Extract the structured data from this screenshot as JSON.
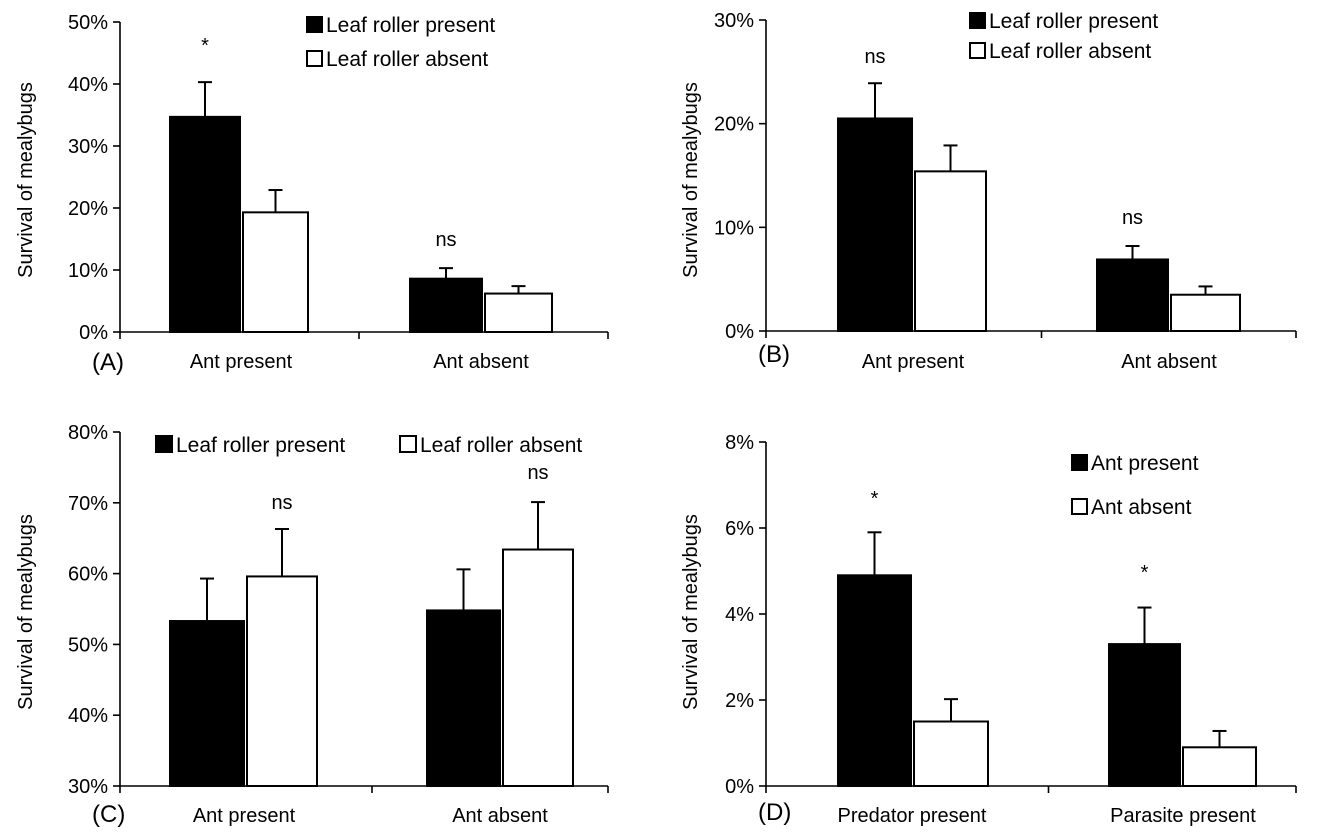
{
  "chart_data": [
    {
      "panel": "(A)",
      "type": "bar",
      "categories": [
        "Ant present",
        "Ant absent"
      ],
      "ylabel": "Survival of mealybugs",
      "ylim": [
        0,
        50
      ],
      "yticks": [
        "0%",
        "10%",
        "20%",
        "30%",
        "40%",
        "50%"
      ],
      "series": [
        {
          "name": "Leaf roller present",
          "color": "#000000",
          "values": [
            34.7,
            8.6
          ],
          "errors": [
            5.6,
            1.7
          ]
        },
        {
          "name": "Leaf roller absent",
          "color": "#ffffff",
          "values": [
            19.3,
            6.2
          ],
          "errors": [
            3.6,
            1.2
          ]
        }
      ],
      "annotations": [
        "*",
        "ns"
      ],
      "legend_position": "top-right"
    },
    {
      "panel": "(B)",
      "type": "bar",
      "categories": [
        "Ant present",
        "Ant absent"
      ],
      "ylabel": "Survival of mealybugs",
      "ylim": [
        0,
        30
      ],
      "yticks": [
        "0%",
        "10%",
        "20%",
        "30%"
      ],
      "series": [
        {
          "name": "Leaf roller present",
          "color": "#000000",
          "values": [
            20.5,
            6.9
          ],
          "errors": [
            3.4,
            1.3
          ]
        },
        {
          "name": "Leaf roller absent",
          "color": "#ffffff",
          "values": [
            15.4,
            3.5
          ],
          "errors": [
            2.5,
            0.8
          ]
        }
      ],
      "annotations": [
        "ns",
        "ns"
      ],
      "legend_position": "top-right"
    },
    {
      "panel": "(C)",
      "type": "bar",
      "categories": [
        "Ant present",
        "Ant absent"
      ],
      "ylabel": "Survival of mealybugs",
      "ylim": [
        30,
        80
      ],
      "yticks": [
        "30%",
        "40%",
        "50%",
        "60%",
        "70%",
        "80%"
      ],
      "series": [
        {
          "name": "Leaf roller present",
          "color": "#000000",
          "values": [
            53.3,
            54.8
          ],
          "errors": [
            6.0,
            5.8
          ]
        },
        {
          "name": "Leaf roller absent",
          "color": "#ffffff",
          "values": [
            59.6,
            63.4
          ],
          "errors": [
            6.7,
            6.7
          ]
        }
      ],
      "annotations": [
        "ns",
        "ns"
      ],
      "legend_position": "top"
    },
    {
      "panel": "(D)",
      "type": "bar",
      "categories": [
        "Predator present",
        "Parasite present"
      ],
      "ylabel": "Survival of mealybugs",
      "ylim": [
        0,
        8
      ],
      "yticks": [
        "0%",
        "2%",
        "4%",
        "6%",
        "8%"
      ],
      "series": [
        {
          "name": "Ant present",
          "color": "#000000",
          "values": [
            4.9,
            3.3
          ],
          "errors": [
            1.0,
            0.85
          ]
        },
        {
          "name": "Ant absent",
          "color": "#ffffff",
          "values": [
            1.5,
            0.9
          ],
          "errors": [
            0.52,
            0.38
          ]
        }
      ],
      "annotations": [
        "*",
        "*"
      ],
      "legend_position": "top-right"
    }
  ]
}
